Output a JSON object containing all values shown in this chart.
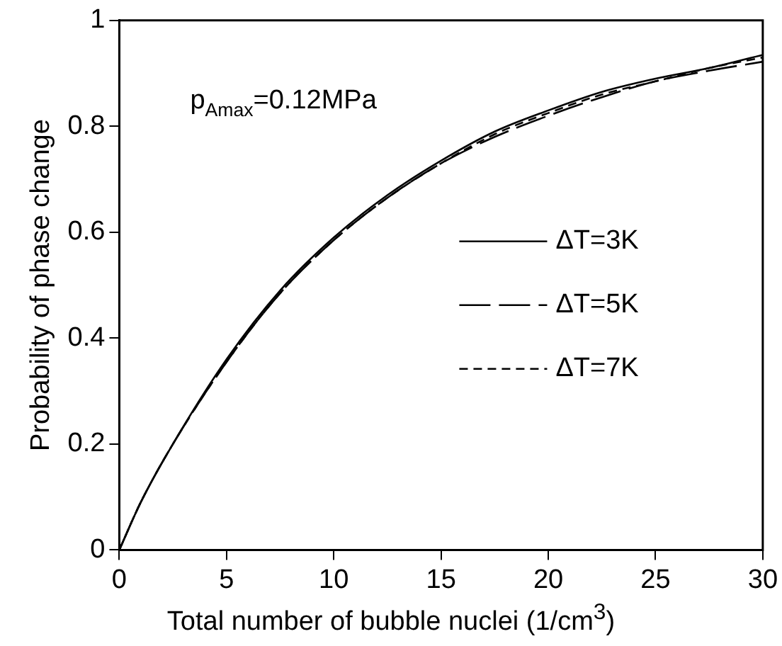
{
  "chart_data": {
    "type": "line",
    "xlabel": "Total number of bubble nuclei (1/cm$^{3}$)",
    "ylabel": "Probability of phase change",
    "annotations": [
      "p$_{Amax}$=0.12MPa"
    ],
    "xlim": [
      0,
      30
    ],
    "xticks": [
      0,
      5,
      10,
      15,
      20,
      25,
      30
    ],
    "ylim": [
      0,
      1
    ],
    "yticks": [
      0,
      0.2,
      0.4,
      0.6,
      0.8,
      1
    ],
    "grid": false,
    "legend": "right",
    "marker": "none",
    "series": [
      {
        "name": "ΔT=3K",
        "color": "#000000",
        "line_style": "solid",
        "x": [
          0,
          1,
          2.5,
          5,
          7.5,
          10,
          12.5,
          15,
          17.5,
          20,
          22.5,
          25,
          27.5,
          30
        ],
        "values": [
          0,
          0.09,
          0.2,
          0.36,
          0.49,
          0.59,
          0.67,
          0.735,
          0.79,
          0.83,
          0.865,
          0.89,
          0.91,
          0.935
        ]
      },
      {
        "name": "ΔT=5K",
        "color": "#000000",
        "line_style": "longdash",
        "x": [
          0,
          1,
          2.5,
          5,
          7.5,
          10,
          12.5,
          15,
          17.5,
          20,
          22.5,
          25,
          27.5,
          30
        ],
        "values": [
          0,
          0.09,
          0.2,
          0.355,
          0.485,
          0.585,
          0.665,
          0.73,
          0.78,
          0.82,
          0.855,
          0.885,
          0.905,
          0.922
        ]
      },
      {
        "name": "ΔT=7K",
        "color": "#000000",
        "line_style": "dashed",
        "x": [
          0,
          1,
          2.5,
          5,
          7.5,
          10,
          12.5,
          15,
          17.5,
          20,
          22.5,
          25,
          27.5,
          30
        ],
        "values": [
          0,
          0.09,
          0.2,
          0.355,
          0.485,
          0.585,
          0.665,
          0.73,
          0.785,
          0.825,
          0.86,
          0.885,
          0.91,
          0.93
        ]
      }
    ]
  }
}
